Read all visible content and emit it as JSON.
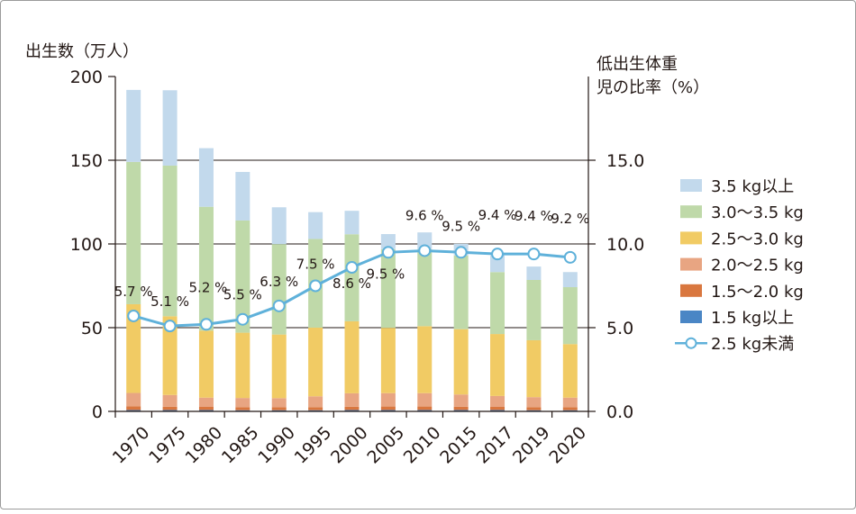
{
  "chart_data": {
    "type": "bar",
    "stacked": true,
    "categories": [
      "1970",
      "1975",
      "1980",
      "1985",
      "1990",
      "1995",
      "2000",
      "2005",
      "2010",
      "2015",
      "2017",
      "2019",
      "2020"
    ],
    "left_axis": {
      "label": "出生数（万人）",
      "ylim": [
        0,
        200
      ],
      "ticks": [
        0,
        50,
        100,
        150,
        200
      ],
      "tick_labels": [
        "0",
        "50",
        "100",
        "150",
        "200"
      ]
    },
    "right_axis": {
      "label_line1": "低出生体重",
      "label_line2": "児の比率（%）",
      "ylim": [
        0,
        20
      ],
      "ticks": [
        0,
        5,
        10,
        15
      ],
      "tick_labels": [
        "0.0",
        "5.0",
        "10.0",
        "15.0"
      ]
    },
    "series": [
      {
        "name": "1.5 kg以上",
        "color": "#4a86c5",
        "values": [
          0.8,
          0.8,
          0.8,
          0.7,
          0.7,
          0.7,
          0.8,
          0.8,
          0.8,
          0.8,
          0.8,
          0.7,
          0.7
        ]
      },
      {
        "name": "1.5～2.0 kg",
        "color": "#d9773f",
        "values": [
          2.2,
          2.0,
          1.9,
          1.8,
          1.7,
          1.8,
          2.0,
          2.1,
          2.1,
          2.0,
          1.9,
          1.8,
          1.8
        ]
      },
      {
        "name": "2.0～2.5 kg",
        "color": "#e8a582",
        "values": [
          8.0,
          7.0,
          5.5,
          5.5,
          5.5,
          6.5,
          8.0,
          8.0,
          8.0,
          7.3,
          6.5,
          6.0,
          5.7
        ]
      },
      {
        "name": "2.5～3.0 kg",
        "color": "#f1cb64",
        "values": [
          53,
          47,
          40,
          39,
          38,
          41,
          43,
          39,
          40,
          39,
          37,
          34,
          32
        ]
      },
      {
        "name": "3.0～3.5 kg",
        "color": "#bfd9a9",
        "values": [
          85,
          90,
          74,
          67,
          54,
          53,
          52,
          47,
          46,
          44,
          37,
          36,
          34
        ]
      },
      {
        "name": "3.5 kg以上",
        "color": "#c2d9ec",
        "values": [
          43,
          45,
          35,
          29,
          22,
          16,
          14,
          9,
          10,
          7,
          10,
          8,
          9
        ]
      }
    ],
    "line_series": {
      "name": "2.5 kg未満",
      "color": "#5fb1da",
      "values": [
        5.7,
        5.1,
        5.2,
        5.5,
        6.3,
        7.5,
        8.6,
        9.5,
        9.6,
        9.5,
        9.4,
        9.4,
        9.2
      ],
      "labels": [
        "5.7 %",
        "5.1 %",
        "5.2 %",
        "5.5 %",
        "6.3 %",
        "7.5 %",
        "8.6 %",
        "9.5 %",
        "9.6 %",
        "9.5 %",
        "9.4 %",
        "9.4 %",
        "9.2 %"
      ]
    },
    "legend": {
      "position": "right",
      "entries": [
        "3.5 kg以上",
        "3.0～3.5 kg",
        "2.5～3.0 kg",
        "2.0～2.5 kg",
        "1.5～2.0 kg",
        "1.5 kg以上",
        "2.5 kg未満"
      ]
    },
    "grid": true
  }
}
